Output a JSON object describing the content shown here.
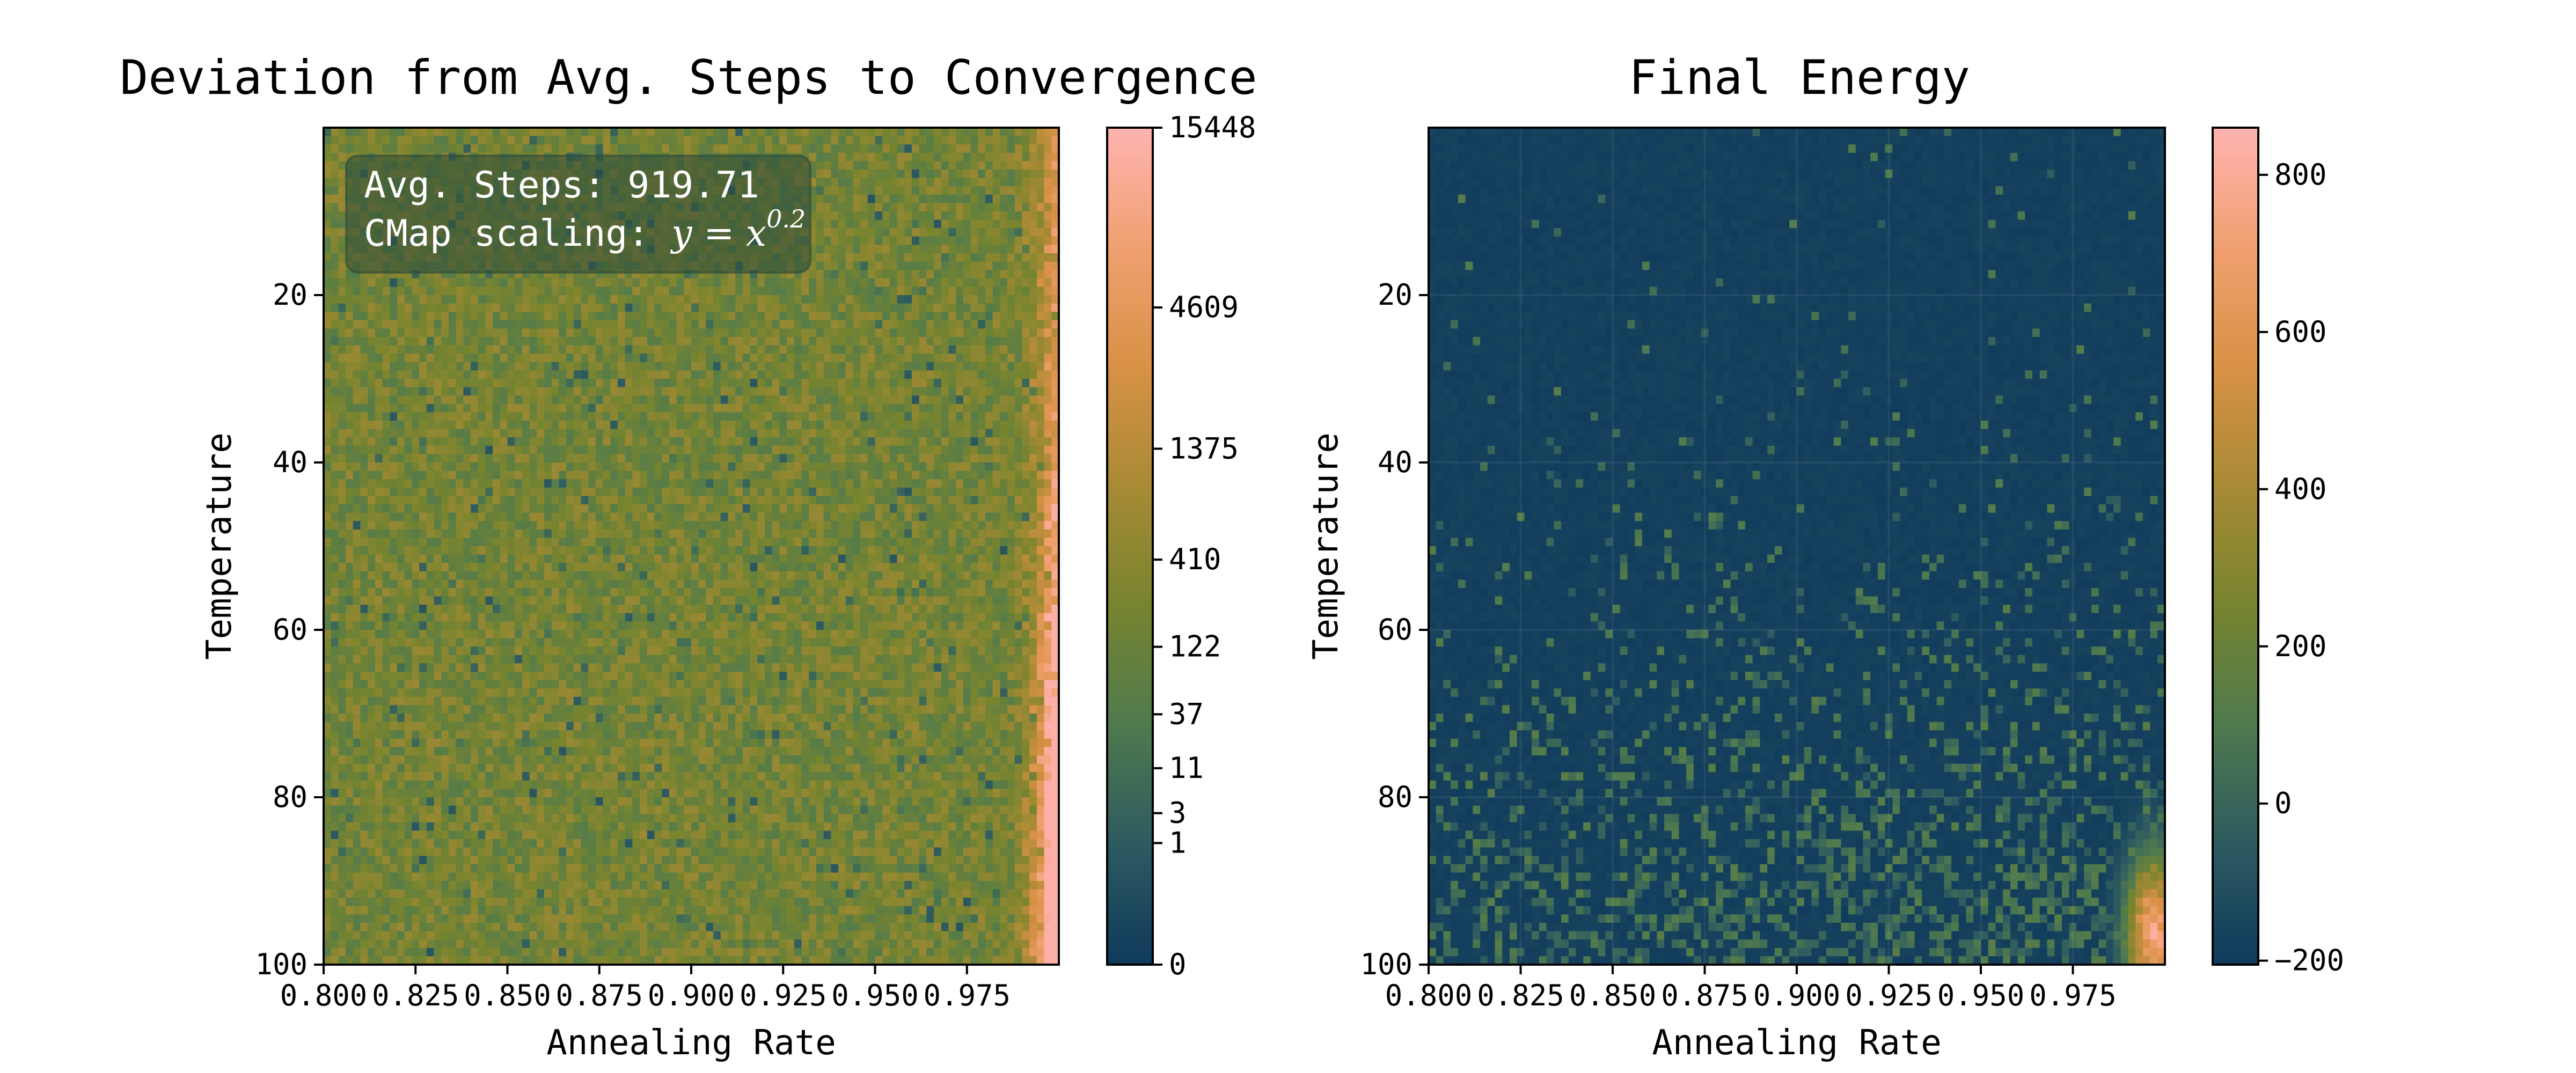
{
  "chart_data": [
    {
      "type": "heatmap",
      "title": "Deviation from Avg. Steps to Convergence",
      "xlabel": "Annealing Rate",
      "ylabel": "Temperature",
      "xlim": [
        0.8,
        1.0
      ],
      "ylim": [
        100,
        0
      ],
      "x_ticks": [
        0.8,
        0.825,
        0.85,
        0.875,
        0.9,
        0.925,
        0.95,
        0.975
      ],
      "x_tick_labels": [
        "0.800",
        "0.825",
        "0.850",
        "0.875",
        "0.900",
        "0.925",
        "0.950",
        "0.975"
      ],
      "y_ticks": [
        20,
        40,
        60,
        80,
        100
      ],
      "y_tick_labels": [
        "20",
        "40",
        "60",
        "80",
        "100"
      ],
      "grid": false,
      "annotation": {
        "line1": "Avg. Steps: 919.71",
        "line2_prefix": "CMap scaling: ",
        "line2_math": "y = x",
        "line2_exponent": "0.2"
      },
      "colorbar": {
        "scale": "power 0.2",
        "ticks": [
          0,
          1,
          3,
          11,
          37,
          122,
          410,
          1375,
          4609,
          15448
        ],
        "tick_labels": [
          "0",
          "1",
          "3",
          "11",
          "37",
          "122",
          "410",
          "1375",
          "4609",
          "15448"
        ],
        "min": 0,
        "max": 15448
      },
      "grid_size": [
        100,
        100
      ],
      "pattern": "noisy olive-green field (~70-130 deviation) with a bright orange band at annealing rate > 0.975 for temperature > 45, peaking near 15448"
    },
    {
      "type": "heatmap",
      "title": "Final Energy",
      "xlabel": "Annealing Rate",
      "ylabel": "Temperature",
      "xlim": [
        0.8,
        1.0
      ],
      "ylim": [
        100,
        0
      ],
      "x_ticks": [
        0.8,
        0.825,
        0.85,
        0.875,
        0.9,
        0.925,
        0.95,
        0.975
      ],
      "x_tick_labels": [
        "0.800",
        "0.825",
        "0.850",
        "0.875",
        "0.900",
        "0.925",
        "0.950",
        "0.975"
      ],
      "y_ticks": [
        20,
        40,
        60,
        80,
        100
      ],
      "y_tick_labels": [
        "20",
        "40",
        "60",
        "80",
        "100"
      ],
      "grid": true,
      "colorbar": {
        "scale": "linear",
        "ticks": [
          -200,
          0,
          200,
          400,
          600,
          800
        ],
        "tick_labels": [
          "−200",
          "0",
          "200",
          "400",
          "600",
          "800"
        ],
        "min": -205,
        "max": 860
      },
      "grid_size": [
        100,
        100
      ],
      "pattern": "mostly dark navy (~ -200) with sparse green speckles increasing toward high temperature, bright peak (~850) at annealing rate ~0.995, temperature ~90-100"
    }
  ],
  "colormap": [
    "#0f3a5c",
    "#2d5a60",
    "#4f7a4e",
    "#77842f",
    "#a88a35",
    "#d89145",
    "#f0a070",
    "#ffb3b0"
  ]
}
